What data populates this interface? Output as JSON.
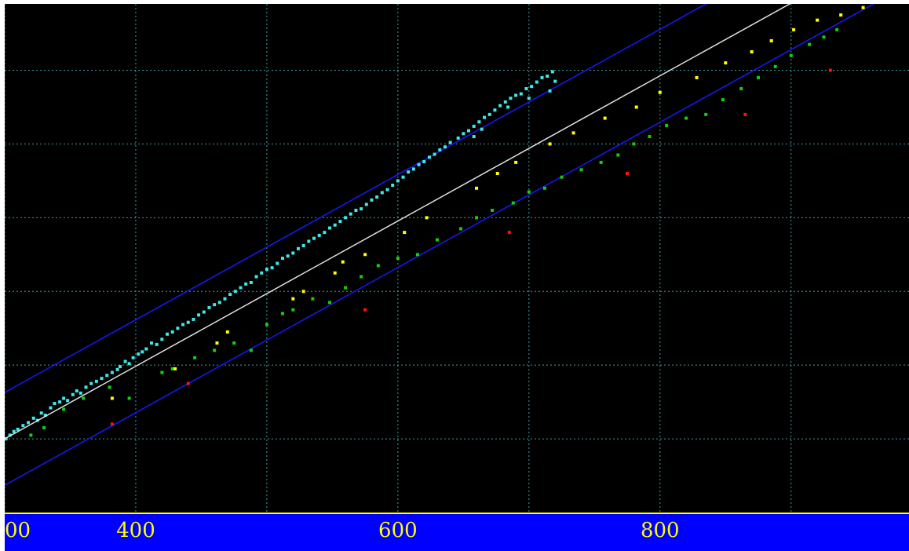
{
  "chart_data": {
    "type": "scatter",
    "title": "",
    "xlabel": "",
    "ylabel": "",
    "xlim": [
      300,
      990
    ],
    "ylim": [
      0,
      6.9
    ],
    "x_ticks": [
      300,
      400,
      500,
      600,
      700,
      800,
      900
    ],
    "x_tick_labels": [
      {
        "x": 300,
        "label": "00"
      },
      {
        "x": 400,
        "label": "400"
      },
      {
        "x": 600,
        "label": "600"
      },
      {
        "x": 800,
        "label": "800"
      }
    ],
    "y_grid": [
      1,
      2,
      3,
      4,
      5,
      6
    ],
    "grid": true,
    "colors": {
      "background": "#000000",
      "grid": "#3fa0a0",
      "fit_line": "#e0e0e0",
      "bounds": "#1818ff",
      "axis_bar": "#0000ff",
      "axis_text": "#ffff00",
      "cyan": "#40e8e8",
      "green": "#10d010",
      "yellow": "#ffff00",
      "red": "#ff1010"
    },
    "fit_line": {
      "x0": 300,
      "y0": 1.0,
      "slope": 0.00985
    },
    "band_offset": 0.63,
    "series": [
      {
        "color": "cyan",
        "points": [
          [
            301,
            1.0
          ],
          [
            304,
            1.05
          ],
          [
            307,
            1.1
          ],
          [
            310,
            1.13
          ],
          [
            314,
            1.18
          ],
          [
            318,
            1.22
          ],
          [
            322,
            1.28
          ],
          [
            325,
            1.25
          ],
          [
            328,
            1.35
          ],
          [
            331,
            1.32
          ],
          [
            335,
            1.42
          ],
          [
            338,
            1.48
          ],
          [
            342,
            1.5
          ],
          [
            345,
            1.55
          ],
          [
            348,
            1.52
          ],
          [
            352,
            1.6
          ],
          [
            355,
            1.65
          ],
          [
            358,
            1.62
          ],
          [
            362,
            1.7
          ],
          [
            366,
            1.75
          ],
          [
            370,
            1.78
          ],
          [
            374,
            1.82
          ],
          [
            378,
            1.86
          ],
          [
            382,
            1.9
          ],
          [
            386,
            1.94
          ],
          [
            388,
            1.98
          ],
          [
            392,
            2.05
          ],
          [
            395,
            2.02
          ],
          [
            398,
            2.1
          ],
          [
            402,
            2.15
          ],
          [
            405,
            2.18
          ],
          [
            408,
            2.22
          ],
          [
            412,
            2.3
          ],
          [
            416,
            2.28
          ],
          [
            420,
            2.35
          ],
          [
            424,
            2.42
          ],
          [
            428,
            2.45
          ],
          [
            432,
            2.5
          ],
          [
            436,
            2.55
          ],
          [
            440,
            2.58
          ],
          [
            444,
            2.62
          ],
          [
            448,
            2.68
          ],
          [
            452,
            2.72
          ],
          [
            456,
            2.78
          ],
          [
            460,
            2.82
          ],
          [
            464,
            2.85
          ],
          [
            468,
            2.9
          ],
          [
            472,
            2.96
          ],
          [
            476,
            3.0
          ],
          [
            480,
            3.05
          ],
          [
            484,
            3.1
          ],
          [
            488,
            3.12
          ],
          [
            492,
            3.2
          ],
          [
            496,
            3.25
          ],
          [
            500,
            3.3
          ],
          [
            504,
            3.32
          ],
          [
            508,
            3.38
          ],
          [
            512,
            3.45
          ],
          [
            516,
            3.48
          ],
          [
            520,
            3.52
          ],
          [
            524,
            3.58
          ],
          [
            528,
            3.62
          ],
          [
            532,
            3.68
          ],
          [
            536,
            3.72
          ],
          [
            540,
            3.76
          ],
          [
            544,
            3.8
          ],
          [
            548,
            3.86
          ],
          [
            552,
            3.9
          ],
          [
            556,
            3.95
          ],
          [
            560,
            4.0
          ],
          [
            564,
            4.05
          ],
          [
            568,
            4.1
          ],
          [
            572,
            4.12
          ],
          [
            576,
            4.18
          ],
          [
            580,
            4.24
          ],
          [
            584,
            4.28
          ],
          [
            588,
            4.34
          ],
          [
            592,
            4.38
          ],
          [
            596,
            4.44
          ],
          [
            600,
            4.5
          ],
          [
            604,
            4.55
          ],
          [
            608,
            4.62
          ],
          [
            612,
            4.66
          ],
          [
            616,
            4.72
          ],
          [
            620,
            4.76
          ],
          [
            624,
            4.82
          ],
          [
            628,
            4.86
          ],
          [
            632,
            4.92
          ],
          [
            636,
            4.96
          ],
          [
            640,
            5.02
          ],
          [
            646,
            5.08
          ],
          [
            650,
            5.14
          ],
          [
            654,
            5.18
          ],
          [
            658,
            5.24
          ],
          [
            662,
            5.3
          ],
          [
            666,
            5.36
          ],
          [
            670,
            5.4
          ],
          [
            674,
            5.46
          ],
          [
            678,
            5.52
          ],
          [
            682,
            5.57
          ],
          [
            686,
            5.62
          ],
          [
            690,
            5.66
          ],
          [
            694,
            5.68
          ],
          [
            698,
            5.75
          ],
          [
            702,
            5.78
          ],
          [
            706,
            5.84
          ],
          [
            710,
            5.9
          ],
          [
            714,
            5.92
          ],
          [
            718,
            5.98
          ],
          [
            720,
            5.85
          ],
          [
            658,
            5.1
          ],
          [
            664,
            5.2
          ],
          [
            684,
            5.5
          ],
          [
            700,
            5.62
          ],
          [
            716,
            5.72
          ]
        ]
      },
      {
        "color": "green",
        "points": [
          [
            320,
            1.05
          ],
          [
            330,
            1.15
          ],
          [
            345,
            1.4
          ],
          [
            360,
            1.55
          ],
          [
            380,
            1.7
          ],
          [
            395,
            1.55
          ],
          [
            420,
            1.9
          ],
          [
            428,
            1.95
          ],
          [
            445,
            2.1
          ],
          [
            460,
            2.2
          ],
          [
            475,
            2.3
          ],
          [
            488,
            2.2
          ],
          [
            500,
            2.55
          ],
          [
            512,
            2.7
          ],
          [
            520,
            2.75
          ],
          [
            535,
            2.9
          ],
          [
            548,
            2.85
          ],
          [
            560,
            3.05
          ],
          [
            572,
            3.2
          ],
          [
            585,
            3.35
          ],
          [
            600,
            3.45
          ],
          [
            615,
            3.5
          ],
          [
            630,
            3.7
          ],
          [
            648,
            3.85
          ],
          [
            660,
            4.0
          ],
          [
            672,
            4.1
          ],
          [
            688,
            4.2
          ],
          [
            700,
            4.35
          ],
          [
            712,
            4.4
          ],
          [
            725,
            4.55
          ],
          [
            740,
            4.65
          ],
          [
            755,
            4.75
          ],
          [
            768,
            4.85
          ],
          [
            780,
            5.0
          ],
          [
            792,
            5.1
          ],
          [
            805,
            5.25
          ],
          [
            820,
            5.35
          ],
          [
            835,
            5.4
          ],
          [
            848,
            5.6
          ],
          [
            862,
            5.75
          ],
          [
            875,
            5.9
          ],
          [
            888,
            6.05
          ],
          [
            900,
            6.2
          ],
          [
            914,
            6.35
          ],
          [
            925,
            6.45
          ],
          [
            935,
            6.55
          ]
        ]
      },
      {
        "color": "yellow",
        "points": [
          [
            382,
            1.55
          ],
          [
            430,
            1.95
          ],
          [
            462,
            2.3
          ],
          [
            470,
            2.45
          ],
          [
            520,
            2.9
          ],
          [
            528,
            3.0
          ],
          [
            552,
            3.25
          ],
          [
            558,
            3.4
          ],
          [
            575,
            3.5
          ],
          [
            605,
            3.8
          ],
          [
            622,
            4.0
          ],
          [
            660,
            4.4
          ],
          [
            676,
            4.6
          ],
          [
            690,
            4.75
          ],
          [
            716,
            5.0
          ],
          [
            734,
            5.15
          ],
          [
            758,
            5.35
          ],
          [
            782,
            5.5
          ],
          [
            800,
            5.7
          ],
          [
            828,
            5.9
          ],
          [
            850,
            6.1
          ],
          [
            870,
            6.25
          ],
          [
            885,
            6.4
          ],
          [
            902,
            6.55
          ],
          [
            920,
            6.68
          ],
          [
            938,
            6.75
          ],
          [
            955,
            6.85
          ]
        ]
      },
      {
        "color": "red",
        "points": [
          [
            382,
            1.2
          ],
          [
            440,
            1.75
          ],
          [
            575,
            2.75
          ],
          [
            685,
            3.8
          ],
          [
            775,
            4.6
          ],
          [
            865,
            5.4
          ],
          [
            930,
            6.0
          ]
        ]
      }
    ]
  }
}
